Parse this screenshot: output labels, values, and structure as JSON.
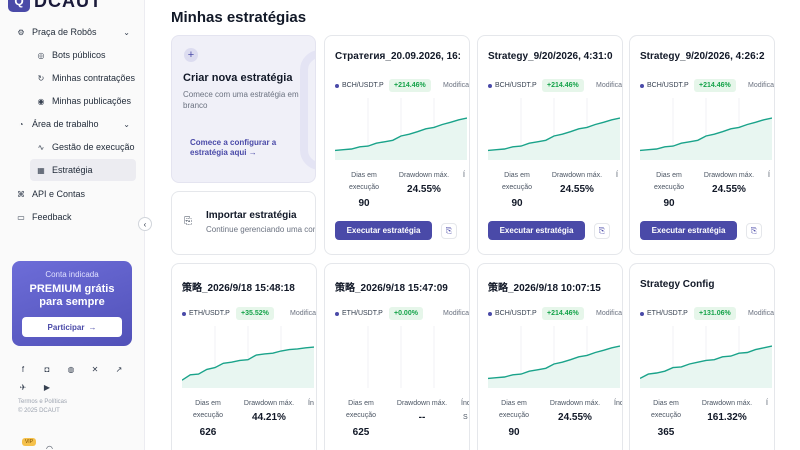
{
  "brand": {
    "logo_letter": "Q",
    "name": "DCAUT"
  },
  "sidebar": {
    "items": [
      {
        "label": "Praça de Robôs",
        "icon": "robot-icon",
        "glyph": "⚙",
        "expandable": true
      },
      {
        "label": "Bots públicos",
        "icon": "bot-icon",
        "glyph": "◎"
      },
      {
        "label": "Minhas contratações",
        "icon": "contract-icon",
        "glyph": "↻"
      },
      {
        "label": "Minhas publicações",
        "icon": "broadcast-icon",
        "glyph": "◉"
      },
      {
        "label": "Área de trabalho",
        "icon": "workspace-icon",
        "glyph": "◔",
        "expandable": true
      },
      {
        "label": "Gestão de execução",
        "icon": "activity-icon",
        "glyph": "∿"
      },
      {
        "label": "Estratégia",
        "icon": "grid-icon",
        "glyph": "▦",
        "active": true
      },
      {
        "label": "API e Contas",
        "icon": "api-icon",
        "glyph": "⌘"
      },
      {
        "label": "Feedback",
        "icon": "feedback-icon",
        "glyph": "▭"
      }
    ],
    "collapse_glyph": "‹",
    "promo": {
      "subtitle": "Conta indicada",
      "title_line1": "PREMIUM grátis",
      "title_line2": "para sempre",
      "button_label": "Participar",
      "button_arrow": "→"
    },
    "socials": [
      {
        "icon": "facebook-icon",
        "glyph": "f"
      },
      {
        "icon": "instagram-icon",
        "glyph": "◘"
      },
      {
        "icon": "discord-icon",
        "glyph": "◍"
      },
      {
        "icon": "x-icon",
        "glyph": "✕"
      },
      {
        "icon": "chart-icon",
        "glyph": "↗"
      },
      {
        "icon": "telegram-icon",
        "glyph": "✈"
      },
      {
        "icon": "youtube-icon",
        "glyph": "▶"
      }
    ],
    "footer_links": "Termos e Políticas",
    "copyright": "© 2025 DCAUT",
    "bottom_badge": "VIP"
  },
  "main": {
    "title": "Minhas estratégias",
    "create": {
      "plus": "+",
      "title": "Criar nova estratégia",
      "description": "Comece com uma estratégia em branco",
      "link": "Comece a configurar a estratégia aqui →"
    },
    "import": {
      "icon_glyph": "⎘",
      "title": "Importar estratégia",
      "description": "Continue gerenciando uma configuração"
    },
    "labels": {
      "days": "Dias em execução",
      "drawdown": "Drawdown máx.",
      "indicator": "Índ",
      "modified": "Modificada",
      "execute": "Executar estratégia",
      "doc_glyph": "⎘"
    },
    "strategies": [
      {
        "name": "Стратегия_20.09.2026, 16:",
        "pair": "BCH/USDT.P",
        "pct": "+214.46%",
        "days": "90",
        "drawdown": "24.55%",
        "has_button": true,
        "indicator": "Í",
        "curve": [
          0.1,
          0.12,
          0.14,
          0.2,
          0.22,
          0.3,
          0.34,
          0.38,
          0.5,
          0.55,
          0.62,
          0.7,
          0.74,
          0.82,
          0.88,
          0.95,
          1.0
        ]
      },
      {
        "name": "Strategy_9/20/2026, 4:31:0",
        "pair": "BCH/USDT.P",
        "pct": "+214.46%",
        "days": "90",
        "drawdown": "24.55%",
        "has_button": true,
        "indicator": "Í",
        "curve": [
          0.1,
          0.12,
          0.14,
          0.2,
          0.22,
          0.3,
          0.34,
          0.38,
          0.5,
          0.55,
          0.62,
          0.7,
          0.74,
          0.82,
          0.88,
          0.95,
          1.0
        ]
      },
      {
        "name": "Strategy_9/20/2026, 4:26:2",
        "pair": "BCH/USDT.P",
        "pct": "+214.46%",
        "days": "90",
        "drawdown": "24.55%",
        "has_button": true,
        "indicator": "Í",
        "curve": [
          0.1,
          0.12,
          0.14,
          0.2,
          0.22,
          0.3,
          0.34,
          0.38,
          0.5,
          0.55,
          0.62,
          0.7,
          0.74,
          0.82,
          0.88,
          0.95,
          1.0
        ]
      },
      {
        "name": "策略_2026/9/18 15:48:18",
        "pair": "ETH/USDT.P",
        "pct": "+35.52%",
        "days": "626",
        "drawdown": "44.21%",
        "has_button": false,
        "indicator": "Ín",
        "curve": [
          0.05,
          0.2,
          0.22,
          0.35,
          0.4,
          0.52,
          0.55,
          0.6,
          0.62,
          0.75,
          0.78,
          0.8,
          0.86,
          0.9,
          0.92,
          0.95,
          0.97
        ]
      },
      {
        "name": "策略_2026/9/18 15:47:09",
        "pair": "ETH/USDT.P",
        "pct": "+0.00%",
        "days": "625",
        "drawdown": "--",
        "has_button": false,
        "indicator": "Índ",
        "indicator_val": "S",
        "curve": []
      },
      {
        "name": "策略_2026/9/18 10:07:15",
        "pair": "BCH/USDT.P",
        "pct": "+214.46%",
        "days": "90",
        "drawdown": "24.55%",
        "has_button": false,
        "indicator": "Índic",
        "curve": [
          0.1,
          0.12,
          0.14,
          0.2,
          0.22,
          0.3,
          0.34,
          0.38,
          0.5,
          0.55,
          0.62,
          0.7,
          0.74,
          0.82,
          0.88,
          0.95,
          1.0
        ]
      },
      {
        "name": "Strategy Config",
        "pair": "ETH/USDT.P",
        "pct": "+131.06%",
        "days": "365",
        "drawdown": "161.32%",
        "has_button": false,
        "indicator": "Í",
        "curve": [
          0.1,
          0.22,
          0.25,
          0.3,
          0.4,
          0.42,
          0.5,
          0.55,
          0.6,
          0.62,
          0.7,
          0.72,
          0.8,
          0.82,
          0.9,
          0.95,
          1.0
        ]
      }
    ]
  }
}
